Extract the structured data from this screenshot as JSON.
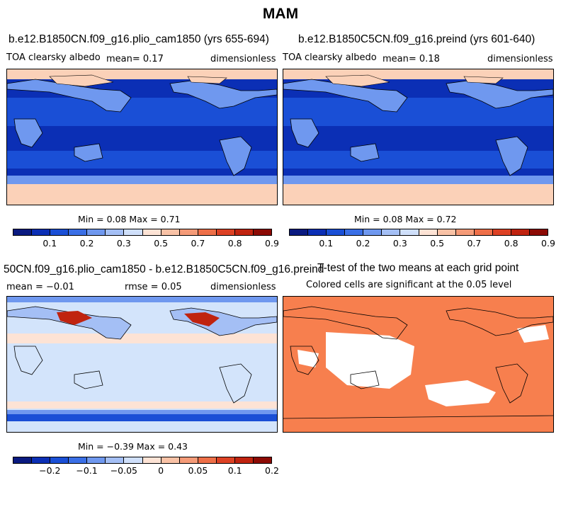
{
  "main_title": "MAM",
  "panels": {
    "tl": {
      "title": "b.e12.B1850CN.f09_g16.plio_cam1850 (yrs 655-694)",
      "left": "TOA clearsky albedo",
      "mean": "mean=     0.17",
      "right": "dimensionless",
      "minmax": "Min =    0.08 Max =    0.71"
    },
    "tr": {
      "title": "b.e12.B1850C5CN.f09_g16.preind (yrs 601-640)",
      "left": "TOA clearsky albedo",
      "mean": "mean=     0.18",
      "right": "dimensionless",
      "minmax": "Min =    0.08 Max =    0.72"
    },
    "bl": {
      "title": "50CN.f09_g16.plio_cam1850 - b.e12.B1850C5CN.f09_g16.preind",
      "left": "mean =  −0.01",
      "mean": "rmse =    0.05",
      "right": "dimensionless",
      "minmax": "Min =  −0.39 Max =    0.43"
    },
    "br": {
      "title": "T-test of the two means at each grid point",
      "sub": "Colored cells are significant at the 0.05 level"
    }
  },
  "colorbar_top": {
    "colors": [
      "#0a1a80",
      "#0b2fb5",
      "#1a4fd6",
      "#3a6fe6",
      "#6f98ef",
      "#a4bff5",
      "#cfdffa",
      "#fde3d5",
      "#f9c2a6",
      "#f59b78",
      "#ee6f48",
      "#dd4124",
      "#c0230f",
      "#8c0a04"
    ],
    "tick_labels": [
      "0.1",
      "0.2",
      "0.3",
      "0.5",
      "0.7",
      "0.8",
      "0.9"
    ]
  },
  "colorbar_diff": {
    "colors": [
      "#0a1a80",
      "#0b2fb5",
      "#1a4fd6",
      "#3a6fe6",
      "#6f98ef",
      "#a4bff5",
      "#cfdffa",
      "#fde3d5",
      "#f9c2a6",
      "#f59b78",
      "#ee6f48",
      "#dd4124",
      "#c0230f",
      "#8c0a04"
    ],
    "tick_labels": [
      "−0.2",
      "−0.1",
      "−0.05",
      "0",
      "0.05",
      "0.1",
      "0.2"
    ]
  },
  "map_colors": {
    "ocean_deep": "#0b2fb5",
    "ocean_mid": "#1a4fd6",
    "polar": "#fbd1b8",
    "land": "#6f98ef",
    "diff_bg": "#d3e4fb",
    "ttest": "#f77f4e"
  }
}
